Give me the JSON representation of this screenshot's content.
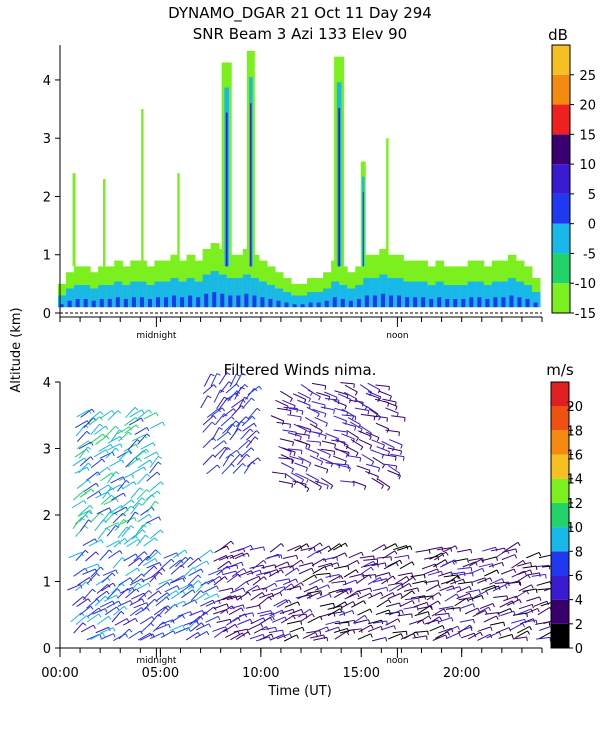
{
  "chart_data": [
    {
      "type": "heatmap",
      "title": "DYNAMO_DGAR  21 Oct 11 Day 294",
      "subtitle": "SNR Beam 3 Azi 133 Elev 90",
      "ylabel": "Altitude (km)",
      "xlim": [
        0,
        24
      ],
      "ylim": [
        0,
        4.6
      ],
      "yticks": [
        0,
        1,
        2,
        3,
        4
      ],
      "x_annotations": [
        {
          "x": 4.8,
          "text": "midnight"
        },
        {
          "x": 16.8,
          "text": "noon"
        }
      ],
      "colorbar": {
        "unit": "dB",
        "range": [
          -15,
          30
        ],
        "tick_labels": [
          "-15",
          "-10",
          "-5",
          "0",
          "5",
          "10",
          "15",
          "20",
          "25"
        ],
        "tick_values": [
          -15,
          -10,
          -5,
          0,
          5,
          10,
          15,
          20,
          25
        ],
        "colors": [
          "#7cf01e",
          "#22d36a",
          "#18b8e8",
          "#2038f0",
          "#3a1ad0",
          "#3a0070",
          "#f02020",
          "#f58a10",
          "#f5c020"
        ]
      },
      "columns": [
        {
          "x": 0.1,
          "top": 0.5
        },
        {
          "x": 0.5,
          "top": 0.7
        },
        {
          "x": 0.9,
          "top": 0.8
        },
        {
          "x": 1.3,
          "top": 0.8
        },
        {
          "x": 1.7,
          "top": 0.7
        },
        {
          "x": 2.1,
          "top": 0.8
        },
        {
          "x": 2.5,
          "top": 0.8
        },
        {
          "x": 2.9,
          "top": 0.9
        },
        {
          "x": 3.3,
          "top": 0.8
        },
        {
          "x": 3.7,
          "top": 0.9
        },
        {
          "x": 4.1,
          "top": 0.9
        },
        {
          "x": 4.5,
          "top": 0.8
        },
        {
          "x": 4.9,
          "top": 0.9
        },
        {
          "x": 5.3,
          "top": 0.9
        },
        {
          "x": 5.7,
          "top": 1.0
        },
        {
          "x": 6.1,
          "top": 0.9
        },
        {
          "x": 6.5,
          "top": 1.0
        },
        {
          "x": 6.9,
          "top": 0.9
        },
        {
          "x": 7.3,
          "top": 1.1
        },
        {
          "x": 7.7,
          "top": 1.2
        },
        {
          "x": 8.1,
          "top": 1.1
        },
        {
          "x": 8.5,
          "top": 1.0
        },
        {
          "x": 8.9,
          "top": 1.0
        },
        {
          "x": 9.3,
          "top": 1.1
        },
        {
          "x": 9.7,
          "top": 1.0
        },
        {
          "x": 10.1,
          "top": 0.9
        },
        {
          "x": 10.5,
          "top": 0.8
        },
        {
          "x": 10.9,
          "top": 0.7
        },
        {
          "x": 11.3,
          "top": 0.6
        },
        {
          "x": 11.7,
          "top": 0.5
        },
        {
          "x": 12.1,
          "top": 0.5
        },
        {
          "x": 12.5,
          "top": 0.6
        },
        {
          "x": 12.9,
          "top": 0.6
        },
        {
          "x": 13.3,
          "top": 0.7
        },
        {
          "x": 13.7,
          "top": 0.9
        },
        {
          "x": 14.1,
          "top": 0.8
        },
        {
          "x": 14.5,
          "top": 0.7
        },
        {
          "x": 14.9,
          "top": 0.8
        },
        {
          "x": 15.3,
          "top": 1.0
        },
        {
          "x": 15.7,
          "top": 1.0
        },
        {
          "x": 16.1,
          "top": 1.1
        },
        {
          "x": 16.5,
          "top": 1.0
        },
        {
          "x": 16.9,
          "top": 1.0
        },
        {
          "x": 17.3,
          "top": 0.9
        },
        {
          "x": 17.7,
          "top": 0.9
        },
        {
          "x": 18.1,
          "top": 0.9
        },
        {
          "x": 18.5,
          "top": 0.8
        },
        {
          "x": 18.9,
          "top": 0.9
        },
        {
          "x": 19.3,
          "top": 0.8
        },
        {
          "x": 19.7,
          "top": 0.8
        },
        {
          "x": 20.1,
          "top": 0.8
        },
        {
          "x": 20.5,
          "top": 0.9
        },
        {
          "x": 20.9,
          "top": 0.9
        },
        {
          "x": 21.3,
          "top": 0.8
        },
        {
          "x": 21.7,
          "top": 0.9
        },
        {
          "x": 22.1,
          "top": 0.9
        },
        {
          "x": 22.5,
          "top": 1.0
        },
        {
          "x": 22.9,
          "top": 0.9
        },
        {
          "x": 23.3,
          "top": 0.8
        },
        {
          "x": 23.7,
          "top": 0.6
        }
      ],
      "plumes": [
        {
          "x": 0.7,
          "top": 2.4,
          "width": 0.15
        },
        {
          "x": 2.2,
          "top": 2.3,
          "width": 0.12
        },
        {
          "x": 4.1,
          "top": 3.5,
          "width": 0.12
        },
        {
          "x": 5.9,
          "top": 2.4,
          "width": 0.12
        },
        {
          "x": 8.3,
          "top": 4.3,
          "width": 0.5
        },
        {
          "x": 9.5,
          "top": 4.5,
          "width": 0.4
        },
        {
          "x": 13.9,
          "top": 4.4,
          "width": 0.5
        },
        {
          "x": 15.1,
          "top": 2.6,
          "width": 0.25
        },
        {
          "x": 16.3,
          "top": 3.0,
          "width": 0.12
        }
      ]
    },
    {
      "type": "scatter",
      "title": "Filtered Winds nima.",
      "xlabel": "Time (UT)",
      "ylabel": "Altitude (km)",
      "xlim": [
        0,
        24
      ],
      "ylim": [
        0,
        4
      ],
      "xticks": [
        0,
        5,
        10,
        15,
        20
      ],
      "xtick_labels": [
        "00:00",
        "05:00",
        "10:00",
        "15:00",
        "20:00"
      ],
      "yticks": [
        0,
        1,
        2,
        3,
        4
      ],
      "x_annotations": [
        {
          "x": 4.8,
          "text": "midnight"
        },
        {
          "x": 16.8,
          "text": "noon"
        }
      ],
      "colorbar": {
        "unit": "m/s",
        "range": [
          0,
          22
        ],
        "tick_labels": [
          "0",
          "2",
          "4",
          "6",
          "8",
          "10",
          "12",
          "14",
          "16",
          "18",
          "20"
        ],
        "tick_values": [
          0,
          2,
          4,
          6,
          8,
          10,
          12,
          14,
          16,
          18,
          20
        ],
        "colors": [
          "#000000",
          "#38006a",
          "#3a1ad0",
          "#2038f0",
          "#18b8e8",
          "#22d36a",
          "#7cf01e",
          "#f5c020",
          "#f58a10",
          "#f05010",
          "#e02020"
        ]
      },
      "wind_regions": [
        {
          "x": [
            0.3,
            7.5
          ],
          "y": [
            0.1,
            1.4
          ],
          "speed": 7,
          "dir": -35
        },
        {
          "x": [
            7.5,
            11.0
          ],
          "y": [
            0.1,
            1.5
          ],
          "speed": 4,
          "dir": -25
        },
        {
          "x": [
            11.0,
            24.0
          ],
          "y": [
            0.1,
            1.5
          ],
          "speed": 3,
          "dir": -20
        },
        {
          "x": [
            0.5,
            4.5
          ],
          "y": [
            1.5,
            3.5
          ],
          "speed": 9,
          "dir": -40
        },
        {
          "x": [
            7.0,
            9.5
          ],
          "y": [
            2.6,
            4.0
          ],
          "speed": 6,
          "dir": -50
        },
        {
          "x": [
            10.5,
            16.5
          ],
          "y": [
            2.5,
            4.0
          ],
          "speed": 4,
          "dir": 20
        }
      ]
    }
  ]
}
